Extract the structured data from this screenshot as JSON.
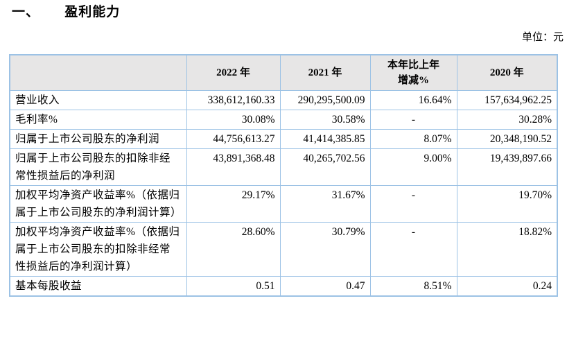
{
  "heading": {
    "number": "一、",
    "title": "盈利能力"
  },
  "unit_label": "单位：元",
  "colors": {
    "table_border": "#9CC2E5",
    "header_bg": "#E7E6E6",
    "text": "#000000"
  },
  "table": {
    "headers": {
      "metric": "",
      "y2022": "2022 年",
      "y2021": "2021 年",
      "change": "本年比上年\n增减%",
      "y2020": "2020 年"
    },
    "rows": [
      {
        "label": "营业收入",
        "y2022": "338,612,160.33",
        "y2021": "290,295,500.09",
        "change": "16.64%",
        "y2020": "157,634,962.25"
      },
      {
        "label": "毛利率%",
        "y2022": "30.08%",
        "y2021": "30.58%",
        "change": "-",
        "y2020": "30.28%"
      },
      {
        "label": "归属于上市公司股东的净利润",
        "y2022": "44,756,613.27",
        "y2021": "41,414,385.85",
        "change": "8.07%",
        "y2020": "20,348,190.52"
      },
      {
        "label": "归属于上市公司股东的扣除非经常性损益后的净利润",
        "y2022": "43,891,368.48",
        "y2021": "40,265,702.56",
        "change": "9.00%",
        "y2020": "19,439,897.66"
      },
      {
        "label": "加权平均净资产收益率%（依据归属于上市公司股东的净利润计算）",
        "y2022": "29.17%",
        "y2021": "31.67%",
        "change": "-",
        "y2020": "19.70%"
      },
      {
        "label": "加权平均净资产收益率%（依据归属于上市公司股东的扣除非经常性损益后的净利润计算）",
        "y2022": "28.60%",
        "y2021": "30.79%",
        "change": "-",
        "y2020": "18.82%"
      },
      {
        "label": "基本每股收益",
        "y2022": "0.51",
        "y2021": "0.47",
        "change": "8.51%",
        "y2020": "0.24"
      }
    ]
  }
}
